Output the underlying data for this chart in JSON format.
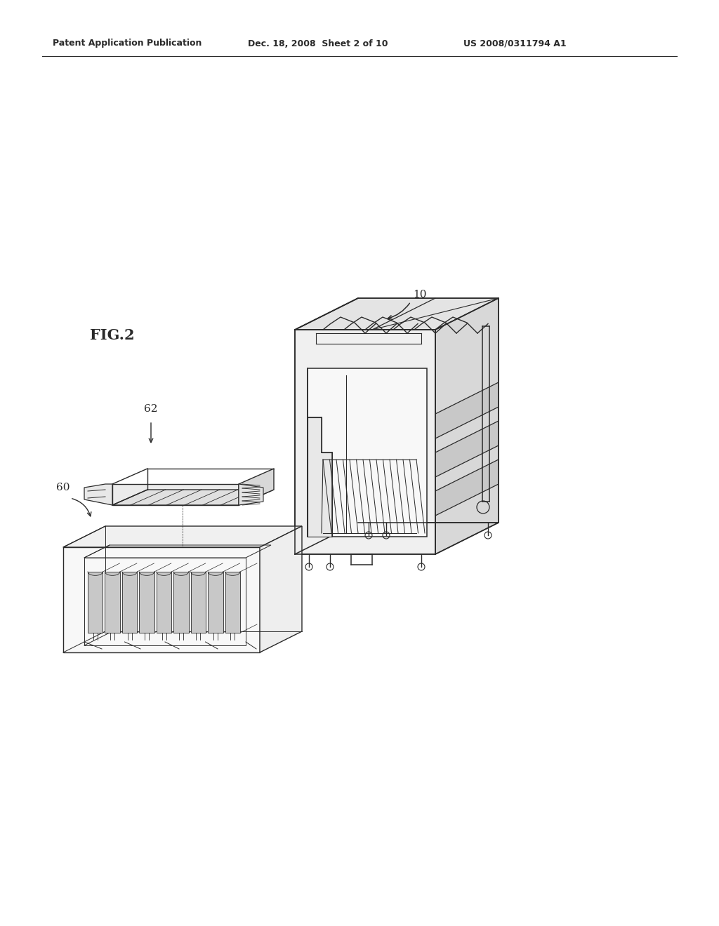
{
  "title_left": "Patent Application Publication",
  "title_center": "Dec. 18, 2008  Sheet 2 of 10",
  "title_right": "US 2008/0311794 A1",
  "fig_label": "FIG.2",
  "label_10": "10",
  "label_60": "60",
  "label_62": "62",
  "bg_color": "#ffffff",
  "line_color": "#2a2a2a",
  "lw": 1.1
}
